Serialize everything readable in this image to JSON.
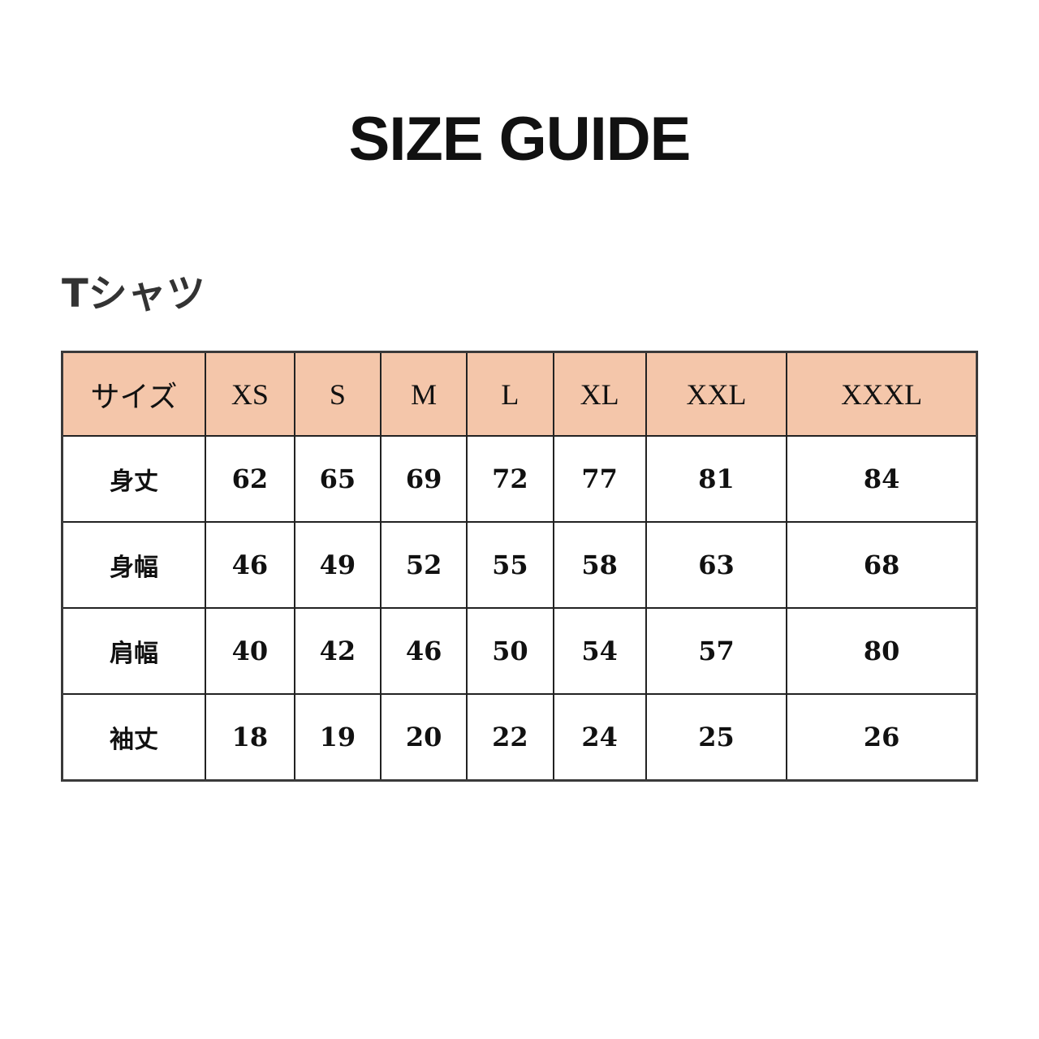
{
  "title": "SIZE GUIDE",
  "subtitle": "Tシャツ",
  "table": {
    "header": [
      "サイズ",
      "XS",
      "S",
      "M",
      "L",
      "XL",
      "XXL",
      "XXXL"
    ],
    "header_bg": "#f4c6aa",
    "rows": [
      {
        "label": "身丈",
        "values": [
          "62",
          "65",
          "69",
          "72",
          "77",
          "81",
          "84"
        ]
      },
      {
        "label": "身幅",
        "values": [
          "46",
          "49",
          "52",
          "55",
          "58",
          "63",
          "68"
        ]
      },
      {
        "label": "肩幅",
        "values": [
          "40",
          "42",
          "46",
          "50",
          "54",
          "57",
          "80"
        ]
      },
      {
        "label": "袖丈",
        "values": [
          "18",
          "19",
          "20",
          "22",
          "24",
          "25",
          "26"
        ]
      }
    ]
  }
}
